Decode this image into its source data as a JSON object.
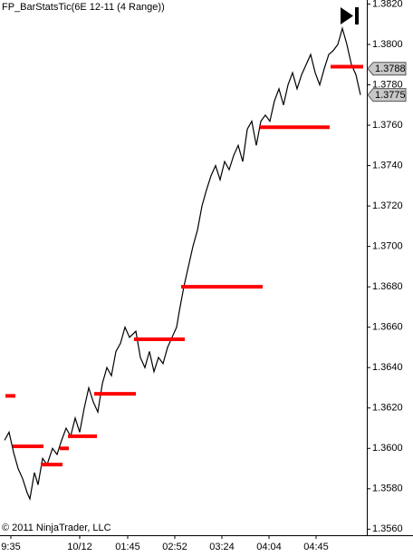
{
  "chart_data": {
    "type": "line",
    "title": "FP_BarStatsTic(6E 12-11 (4 Range))",
    "footer": "© 2011 NinjaTrader, LLC",
    "color": "#000000",
    "x": [
      5,
      10,
      15,
      20,
      25,
      30,
      33,
      38,
      42,
      47,
      52,
      58,
      63,
      68,
      73,
      78,
      83,
      88,
      93,
      98,
      103,
      108,
      113,
      118,
      123,
      128,
      133,
      138,
      143,
      150,
      155,
      160,
      165,
      170,
      175,
      180,
      185,
      190,
      195,
      198,
      203,
      208,
      213,
      218,
      223,
      228,
      233,
      238,
      243,
      248,
      253,
      258,
      263,
      268,
      273,
      278,
      283,
      288,
      293,
      298,
      303,
      308,
      313,
      318,
      323,
      328,
      333,
      338,
      343,
      348,
      353,
      358,
      363,
      368,
      373,
      378,
      383,
      388,
      393,
      398
    ],
    "values": [
      1.3604,
      1.3608,
      1.3598,
      1.359,
      1.3585,
      1.3578,
      1.3575,
      1.3588,
      1.3582,
      1.3595,
      1.3592,
      1.36,
      1.3597,
      1.3604,
      1.361,
      1.3606,
      1.3615,
      1.3608,
      1.362,
      1.363,
      1.3623,
      1.3618,
      1.3632,
      1.364,
      1.3636,
      1.3648,
      1.3652,
      1.366,
      1.3655,
      1.3658,
      1.3645,
      1.364,
      1.3648,
      1.3638,
      1.3645,
      1.3642,
      1.365,
      1.3655,
      1.366,
      1.3668,
      1.368,
      1.369,
      1.37,
      1.3708,
      1.372,
      1.3728,
      1.3735,
      1.374,
      1.3733,
      1.3742,
      1.3738,
      1.3745,
      1.375,
      1.3742,
      1.3758,
      1.3762,
      1.375,
      1.3762,
      1.3765,
      1.3762,
      1.3772,
      1.3778,
      1.377,
      1.378,
      1.3786,
      1.3778,
      1.3785,
      1.379,
      1.3795,
      1.3786,
      1.378,
      1.3788,
      1.3795,
      1.3797,
      1.38,
      1.3808,
      1.38,
      1.379,
      1.3785,
      1.3775
    ],
    "segments_color": "#ff0000",
    "segments": [
      {
        "x": [
          6,
          17
        ],
        "value": 1.3626
      },
      {
        "x": [
          14,
          48
        ],
        "value": 1.3601
      },
      {
        "x": [
          45,
          69
        ],
        "value": 1.3592
      },
      {
        "x": [
          66,
          76
        ],
        "value": 1.36
      },
      {
        "x": [
          75,
          107
        ],
        "value": 1.3606
      },
      {
        "x": [
          104,
          150
        ],
        "value": 1.3627
      },
      {
        "x": [
          148,
          204
        ],
        "value": 1.3654
      },
      {
        "x": [
          200,
          290
        ],
        "value": 1.368
      },
      {
        "x": [
          287,
          364
        ],
        "value": 1.3759
      },
      {
        "x": [
          365,
          401
        ],
        "value": 1.3789
      }
    ],
    "markers": [
      {
        "value": 1.3788
      },
      {
        "value": 1.3775
      }
    ],
    "xlim": [
      0,
      405
    ],
    "xticks": [
      {
        "value": 12,
        "label": "9:35"
      },
      {
        "value": 88,
        "label": "10/12"
      },
      {
        "value": 141,
        "label": "01:45"
      },
      {
        "value": 193,
        "label": "02:52"
      },
      {
        "value": 245,
        "label": "03:24"
      },
      {
        "value": 297,
        "label": "04:04"
      },
      {
        "value": 349,
        "label": "04:45"
      }
    ],
    "ylim": [
      1.3557,
      1.3822
    ],
    "yticks": [
      {
        "value": 1.382,
        "label": "1.3820"
      },
      {
        "value": 1.38,
        "label": "1.3800"
      },
      {
        "value": 1.378,
        "label": "1.3780"
      },
      {
        "value": 1.376,
        "label": "1.3760"
      },
      {
        "value": 1.374,
        "label": "1.3740"
      },
      {
        "value": 1.372,
        "label": "1.3720"
      },
      {
        "value": 1.37,
        "label": "1.3700"
      },
      {
        "value": 1.368,
        "label": "1.3680"
      },
      {
        "value": 1.366,
        "label": "1.3660"
      },
      {
        "value": 1.364,
        "label": "1.3640"
      },
      {
        "value": 1.362,
        "label": "1.3620"
      },
      {
        "value": 1.36,
        "label": "1.3600"
      },
      {
        "value": 1.358,
        "label": "1.3580"
      },
      {
        "value": 1.356,
        "label": "1.3560"
      }
    ]
  }
}
